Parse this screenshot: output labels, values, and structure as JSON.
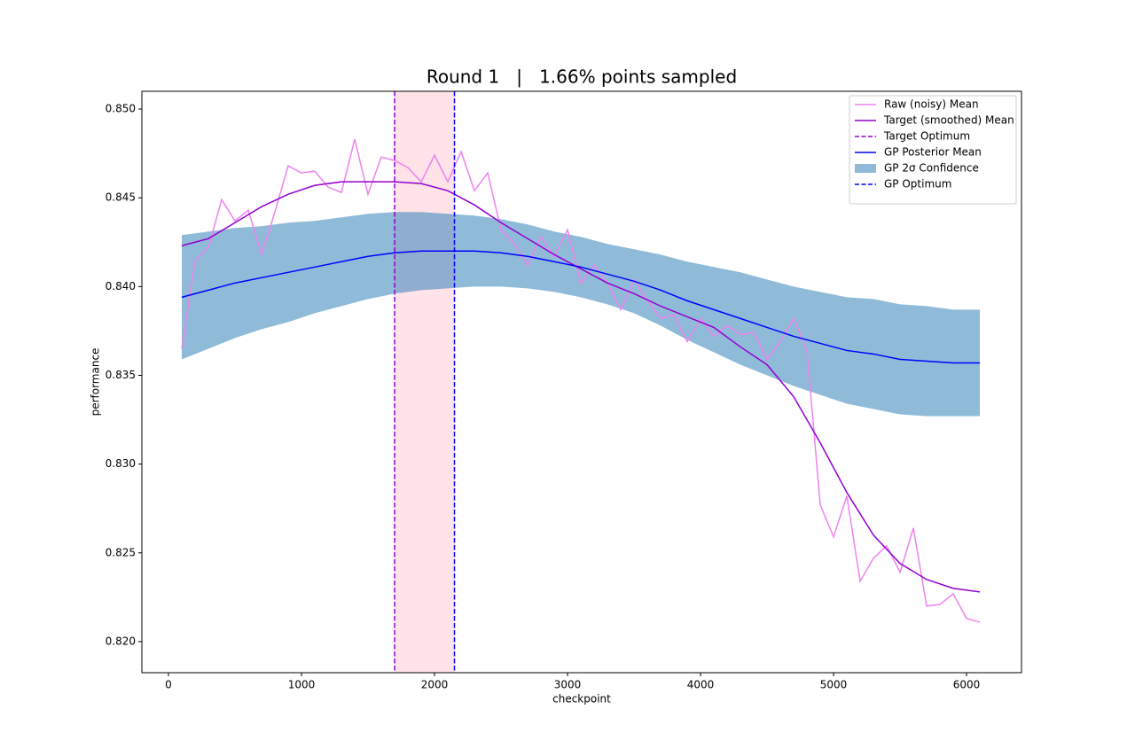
{
  "chart_data": {
    "type": "line",
    "title": "Round 1   |   1.66% points sampled",
    "x_label": "checkpoint",
    "y_label": "performance",
    "xlim": [
      -200,
      6413
    ],
    "ylim": [
      0.81825,
      0.851
    ],
    "xticks": [
      0,
      1000,
      2000,
      3000,
      4000,
      5000,
      6000
    ],
    "yticks": [
      {
        "value": 0.82,
        "label": "0.820"
      },
      0.825,
      {
        "value": 0.83,
        "label": "0.830"
      },
      0.835,
      {
        "value": 0.84,
        "label": "0.840"
      },
      0.845,
      {
        "value": 0.85,
        "label": "0.850"
      }
    ],
    "grid": false,
    "legend_position": "upper right",
    "series": [
      {
        "name": "Raw (noisy) Mean",
        "color": "#ee82ee",
        "x": [
          100,
          200,
          300,
          400,
          500,
          600,
          700,
          800,
          900,
          1000,
          1100,
          1200,
          1300,
          1400,
          1500,
          1600,
          1700,
          1800,
          1900,
          2000,
          2100,
          2200,
          2300,
          2400,
          2500,
          2600,
          2700,
          2800,
          2900,
          3000,
          3100,
          3200,
          3300,
          3400,
          3500,
          3600,
          3700,
          3800,
          3900,
          4000,
          4100,
          4200,
          4300,
          4400,
          4500,
          4600,
          4700,
          4800,
          4900,
          5000,
          5100,
          5200,
          5300,
          5400,
          5500,
          5600,
          5700,
          5800,
          5900,
          6000,
          6100
        ],
        "values": [
          0.8365,
          0.8415,
          0.8422,
          0.8449,
          0.8437,
          0.8443,
          0.8418,
          0.8442,
          0.8468,
          0.8464,
          0.8465,
          0.8456,
          0.8453,
          0.8483,
          0.8452,
          0.8473,
          0.8471,
          0.8467,
          0.8459,
          0.8474,
          0.8459,
          0.8476,
          0.8454,
          0.8464,
          0.8432,
          0.8424,
          0.8412,
          0.8428,
          0.8417,
          0.8432,
          0.8402,
          0.8412,
          0.8402,
          0.8387,
          0.8404,
          0.8392,
          0.8382,
          0.8384,
          0.8369,
          0.8382,
          0.8372,
          0.8378,
          0.8373,
          0.8374,
          0.8359,
          0.8369,
          0.8382,
          0.8364,
          0.8277,
          0.8259,
          0.8282,
          0.8234,
          0.8247,
          0.8254,
          0.8239,
          0.8264,
          0.822,
          0.8221,
          0.8227,
          0.8213,
          0.8211
        ]
      },
      {
        "name": "Target (smoothed) Mean",
        "color": "#9400d3",
        "x": [
          100,
          300,
          500,
          700,
          900,
          1100,
          1300,
          1500,
          1700,
          1900,
          2100,
          2300,
          2500,
          2700,
          2900,
          3100,
          3300,
          3500,
          3700,
          3900,
          4100,
          4300,
          4500,
          4700,
          4900,
          5100,
          5300,
          5500,
          5700,
          5900,
          6100
        ],
        "values": [
          0.8423,
          0.8427,
          0.8436,
          0.8445,
          0.8452,
          0.8457,
          0.8459,
          0.8459,
          0.8459,
          0.8458,
          0.8454,
          0.8446,
          0.8436,
          0.8427,
          0.8418,
          0.841,
          0.8402,
          0.8396,
          0.8389,
          0.8383,
          0.8377,
          0.8366,
          0.8356,
          0.8338,
          0.8312,
          0.8284,
          0.826,
          0.8244,
          0.8235,
          0.823,
          0.8228
        ]
      },
      {
        "name": "GP Posterior Mean",
        "color": "#0000ff",
        "x": [
          100,
          300,
          500,
          700,
          900,
          1100,
          1300,
          1500,
          1700,
          1900,
          2100,
          2300,
          2500,
          2700,
          2900,
          3100,
          3300,
          3500,
          3700,
          3900,
          4100,
          4300,
          4500,
          4700,
          4900,
          5100,
          5300,
          5500,
          5700,
          5900,
          6100
        ],
        "values": [
          0.8394,
          0.8398,
          0.8402,
          0.8405,
          0.8408,
          0.8411,
          0.8414,
          0.8417,
          0.8419,
          0.842,
          0.842,
          0.842,
          0.8419,
          0.8417,
          0.8414,
          0.8411,
          0.8407,
          0.8403,
          0.8398,
          0.8392,
          0.8387,
          0.8382,
          0.8377,
          0.8372,
          0.8368,
          0.8364,
          0.8362,
          0.8359,
          0.8358,
          0.8357,
          0.8357
        ]
      }
    ],
    "band": {
      "name": "GP 2σ Confidence",
      "color": "#1f77b4",
      "x": [
        100,
        300,
        500,
        700,
        900,
        1100,
        1300,
        1500,
        1700,
        1900,
        2100,
        2300,
        2500,
        2700,
        2900,
        3100,
        3300,
        3500,
        3700,
        3900,
        4100,
        4300,
        4500,
        4700,
        4900,
        5100,
        5300,
        5500,
        5700,
        5900,
        6100
      ],
      "lower": [
        0.8359,
        0.8365,
        0.8371,
        0.8376,
        0.838,
        0.8385,
        0.8389,
        0.8393,
        0.8396,
        0.8398,
        0.8399,
        0.84,
        0.84,
        0.8399,
        0.8397,
        0.8394,
        0.839,
        0.8385,
        0.8378,
        0.837,
        0.8363,
        0.8356,
        0.835,
        0.8344,
        0.8339,
        0.8334,
        0.8331,
        0.8328,
        0.8327,
        0.8327,
        0.8327
      ],
      "upper": [
        0.8429,
        0.8431,
        0.8433,
        0.8434,
        0.8436,
        0.8437,
        0.8439,
        0.8441,
        0.8442,
        0.8442,
        0.8441,
        0.844,
        0.8438,
        0.8435,
        0.8431,
        0.8428,
        0.8424,
        0.8421,
        0.8418,
        0.8414,
        0.8411,
        0.8408,
        0.8404,
        0.84,
        0.8397,
        0.8394,
        0.8393,
        0.839,
        0.8389,
        0.8387,
        0.8387
      ]
    },
    "vlines": [
      {
        "name": "Target Optimum",
        "x": 1700,
        "color": "#9400d3"
      },
      {
        "name": "GP Optimum",
        "x": 2150,
        "color": "#0000ff"
      }
    ],
    "span_color": "#ffc0cb"
  }
}
